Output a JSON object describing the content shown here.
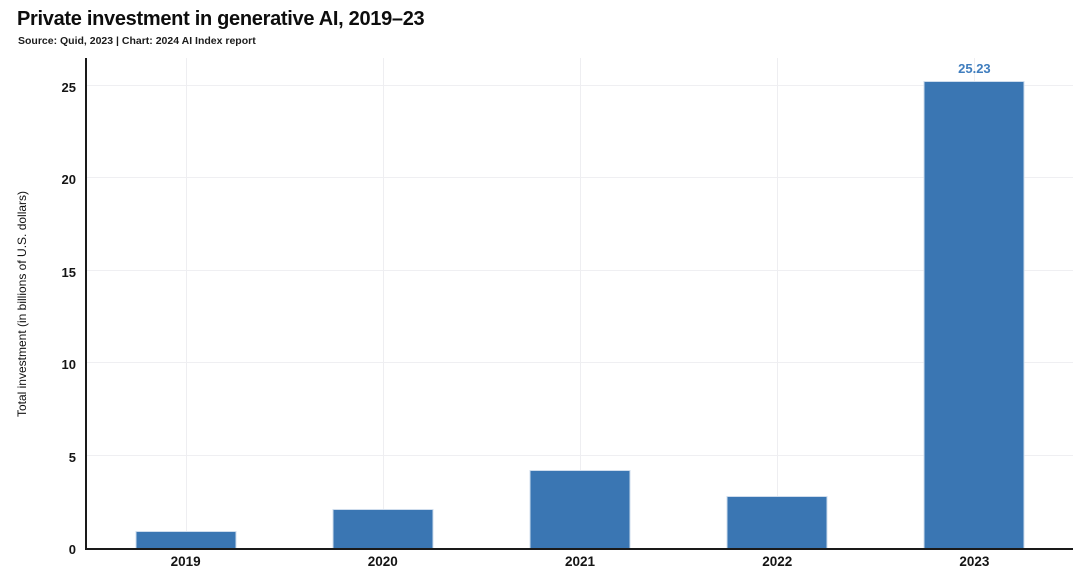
{
  "header": {
    "title": "Private investment in generative AI, 2019–23",
    "source": "Source: Quid, 2023 | Chart: 2024 AI Index report"
  },
  "chart_data": {
    "type": "bar",
    "title": "Private investment in generative AI, 2019–23",
    "subtitle": "Source: Quid, 2023 | Chart: 2024 AI Index report",
    "categories": [
      "2019",
      "2020",
      "2021",
      "2022",
      "2023"
    ],
    "values": [
      0.9,
      2.1,
      4.2,
      2.8,
      25.23
    ],
    "value_labels": [
      "",
      "",
      "",
      "",
      "25.23"
    ],
    "xlabel": "",
    "ylabel": "Total investment (in billions of U.S. dollars)",
    "yticks": [
      0,
      5,
      10,
      15,
      20,
      25
    ],
    "ylim": [
      0,
      26.6
    ],
    "grid": true,
    "legend": "none",
    "colors": {
      "bar": "#3a76b3",
      "value_label": "#3f7dbe",
      "axis": "#1a1a1a",
      "grid": "#efeff2",
      "text": "#151515"
    }
  }
}
